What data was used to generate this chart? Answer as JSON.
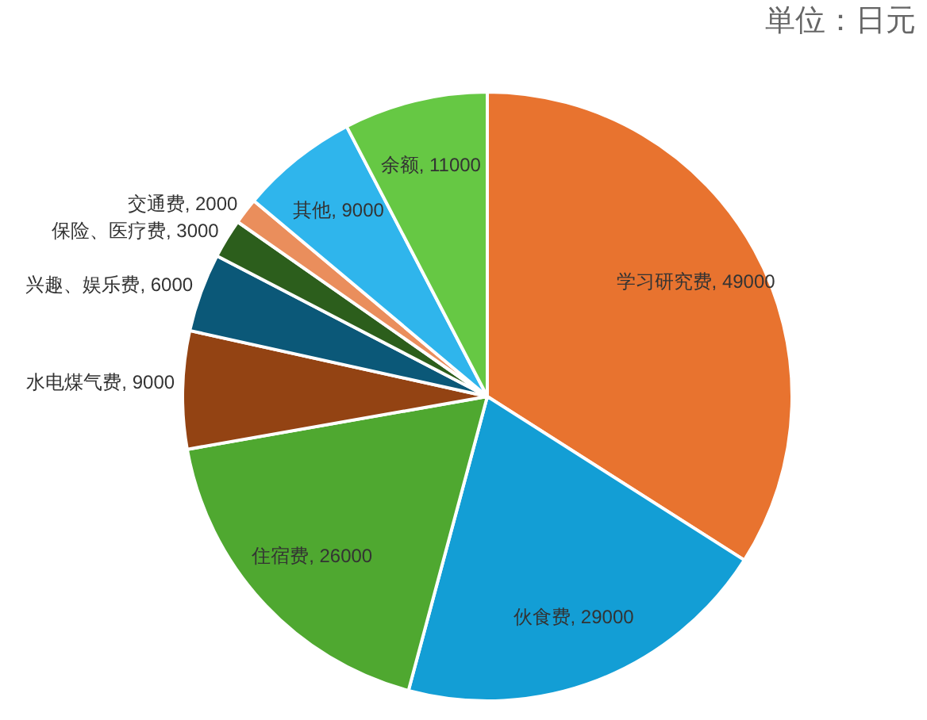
{
  "chart_data": {
    "type": "pie",
    "title": "単位：日元",
    "categories": [
      "学习研究费",
      "伙食费",
      "住宿费",
      "水电煤气费",
      "兴趣、娱乐费",
      "保险、医疗费",
      "交通费",
      "其他",
      "余额"
    ],
    "values": [
      49000,
      29000,
      26000,
      9000,
      6000,
      3000,
      2000,
      9000,
      11000
    ],
    "colors": [
      "#e8732f",
      "#139ed5",
      "#4fa830",
      "#934313",
      "#0b5878",
      "#2c5e1c",
      "#ea8e5c",
      "#2fb5ec",
      "#66c844"
    ],
    "value_labels": [
      ", 49000",
      ", 29000",
      ", 26000",
      ", 9000",
      ", 6000",
      ", 3000",
      ", 2000",
      ", 9000",
      ", 11000"
    ]
  }
}
